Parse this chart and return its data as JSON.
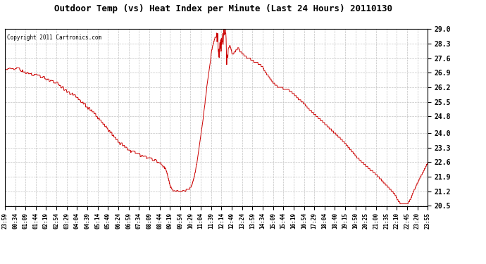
{
  "title": "Outdoor Temp (vs) Heat Index per Minute (Last 24 Hours) 20110130",
  "copyright": "Copyright 2011 Cartronics.com",
  "line_color": "#cc0000",
  "background_color": "#ffffff",
  "plot_bg_color": "#ffffff",
  "grid_color": "#bbbbbb",
  "yticks": [
    20.5,
    21.2,
    21.9,
    22.6,
    23.3,
    24.0,
    24.8,
    25.5,
    26.2,
    26.9,
    27.6,
    28.3,
    29.0
  ],
  "ylim": [
    20.5,
    29.0
  ],
  "x_labels": [
    "23:59",
    "00:34",
    "01:09",
    "01:44",
    "02:19",
    "02:54",
    "03:29",
    "04:04",
    "04:39",
    "05:14",
    "05:49",
    "06:24",
    "06:59",
    "07:34",
    "08:09",
    "08:44",
    "09:19",
    "09:54",
    "10:29",
    "11:04",
    "11:39",
    "12:14",
    "12:49",
    "13:24",
    "13:59",
    "14:34",
    "15:09",
    "15:44",
    "16:19",
    "16:54",
    "17:29",
    "18:04",
    "18:40",
    "19:15",
    "19:50",
    "20:25",
    "21:00",
    "21:35",
    "22:10",
    "22:45",
    "23:20",
    "23:55"
  ],
  "segments": [
    {
      "t": 0,
      "y": 27.1
    },
    {
      "t": 20,
      "y": 27.15
    },
    {
      "t": 50,
      "y": 27.05
    },
    {
      "t": 60,
      "y": 26.95
    },
    {
      "t": 90,
      "y": 26.85
    },
    {
      "t": 120,
      "y": 26.75
    },
    {
      "t": 150,
      "y": 26.55
    },
    {
      "t": 180,
      "y": 26.35
    },
    {
      "t": 210,
      "y": 26.05
    },
    {
      "t": 240,
      "y": 25.75
    },
    {
      "t": 270,
      "y": 25.4
    },
    {
      "t": 300,
      "y": 25.0
    },
    {
      "t": 330,
      "y": 24.5
    },
    {
      "t": 360,
      "y": 24.0
    },
    {
      "t": 390,
      "y": 23.55
    },
    {
      "t": 420,
      "y": 23.2
    },
    {
      "t": 450,
      "y": 23.0
    },
    {
      "t": 480,
      "y": 22.85
    },
    {
      "t": 510,
      "y": 22.7
    },
    {
      "t": 530,
      "y": 22.55
    },
    {
      "t": 545,
      "y": 22.3
    },
    {
      "t": 555,
      "y": 21.8
    },
    {
      "t": 560,
      "y": 21.55
    },
    {
      "t": 565,
      "y": 21.35
    },
    {
      "t": 570,
      "y": 21.25
    },
    {
      "t": 575,
      "y": 21.25
    },
    {
      "t": 585,
      "y": 21.25
    },
    {
      "t": 600,
      "y": 21.25
    },
    {
      "t": 615,
      "y": 21.25
    },
    {
      "t": 625,
      "y": 21.28
    },
    {
      "t": 635,
      "y": 21.5
    },
    {
      "t": 645,
      "y": 22.0
    },
    {
      "t": 655,
      "y": 22.8
    },
    {
      "t": 665,
      "y": 23.8
    },
    {
      "t": 675,
      "y": 24.9
    },
    {
      "t": 685,
      "y": 26.1
    },
    {
      "t": 695,
      "y": 27.1
    },
    {
      "t": 700,
      "y": 27.7
    },
    {
      "t": 703,
      "y": 28.0
    },
    {
      "t": 706,
      "y": 28.2
    },
    {
      "t": 709,
      "y": 28.35
    },
    {
      "t": 712,
      "y": 28.5
    },
    {
      "t": 715,
      "y": 28.6
    },
    {
      "t": 718,
      "y": 28.65
    },
    {
      "t": 721,
      "y": 28.55
    },
    {
      "t": 724,
      "y": 28.3
    },
    {
      "t": 727,
      "y": 28.1
    },
    {
      "t": 730,
      "y": 28.2
    },
    {
      "t": 733,
      "y": 28.35
    },
    {
      "t": 736,
      "y": 28.5
    },
    {
      "t": 739,
      "y": 28.6
    },
    {
      "t": 742,
      "y": 28.55
    },
    {
      "t": 745,
      "y": 29.0
    },
    {
      "t": 748,
      "y": 28.8
    },
    {
      "t": 751,
      "y": 28.3
    },
    {
      "t": 754,
      "y": 27.6
    },
    {
      "t": 757,
      "y": 27.9
    },
    {
      "t": 760,
      "y": 28.1
    },
    {
      "t": 763,
      "y": 28.2
    },
    {
      "t": 766,
      "y": 28.15
    },
    {
      "t": 769,
      "y": 28.0
    },
    {
      "t": 772,
      "y": 27.8
    },
    {
      "t": 775,
      "y": 27.8
    },
    {
      "t": 778,
      "y": 27.85
    },
    {
      "t": 781,
      "y": 27.9
    },
    {
      "t": 784,
      "y": 27.95
    },
    {
      "t": 787,
      "y": 28.0
    },
    {
      "t": 790,
      "y": 28.05
    },
    {
      "t": 793,
      "y": 28.1
    },
    {
      "t": 796,
      "y": 28.0
    },
    {
      "t": 799,
      "y": 27.9
    },
    {
      "t": 805,
      "y": 27.85
    },
    {
      "t": 815,
      "y": 27.7
    },
    {
      "t": 825,
      "y": 27.6
    },
    {
      "t": 835,
      "y": 27.55
    },
    {
      "t": 840,
      "y": 27.5
    },
    {
      "t": 845,
      "y": 27.45
    },
    {
      "t": 855,
      "y": 27.4
    },
    {
      "t": 865,
      "y": 27.3
    },
    {
      "t": 875,
      "y": 27.2
    },
    {
      "t": 885,
      "y": 26.9
    },
    {
      "t": 895,
      "y": 26.75
    },
    {
      "t": 900,
      "y": 26.65
    },
    {
      "t": 905,
      "y": 26.55
    },
    {
      "t": 910,
      "y": 26.45
    },
    {
      "t": 920,
      "y": 26.3
    },
    {
      "t": 930,
      "y": 26.2
    },
    {
      "t": 945,
      "y": 26.15
    },
    {
      "t": 960,
      "y": 26.1
    },
    {
      "t": 970,
      "y": 26.0
    },
    {
      "t": 980,
      "y": 25.9
    },
    {
      "t": 990,
      "y": 25.75
    },
    {
      "t": 1000,
      "y": 25.6
    },
    {
      "t": 1010,
      "y": 25.5
    },
    {
      "t": 1020,
      "y": 25.35
    },
    {
      "t": 1030,
      "y": 25.2
    },
    {
      "t": 1045,
      "y": 25.0
    },
    {
      "t": 1060,
      "y": 24.8
    },
    {
      "t": 1075,
      "y": 24.6
    },
    {
      "t": 1090,
      "y": 24.4
    },
    {
      "t": 1105,
      "y": 24.2
    },
    {
      "t": 1120,
      "y": 24.0
    },
    {
      "t": 1135,
      "y": 23.8
    },
    {
      "t": 1150,
      "y": 23.6
    },
    {
      "t": 1165,
      "y": 23.35
    },
    {
      "t": 1180,
      "y": 23.1
    },
    {
      "t": 1195,
      "y": 22.85
    },
    {
      "t": 1210,
      "y": 22.65
    },
    {
      "t": 1225,
      "y": 22.45
    },
    {
      "t": 1240,
      "y": 22.25
    },
    {
      "t": 1255,
      "y": 22.1
    },
    {
      "t": 1265,
      "y": 21.95
    },
    {
      "t": 1275,
      "y": 21.8
    },
    {
      "t": 1285,
      "y": 21.65
    },
    {
      "t": 1295,
      "y": 21.5
    },
    {
      "t": 1305,
      "y": 21.35
    },
    {
      "t": 1315,
      "y": 21.2
    },
    {
      "t": 1325,
      "y": 21.05
    },
    {
      "t": 1332,
      "y": 20.85
    },
    {
      "t": 1338,
      "y": 20.7
    },
    {
      "t": 1342,
      "y": 20.65
    },
    {
      "t": 1346,
      "y": 20.6
    },
    {
      "t": 1350,
      "y": 20.6
    },
    {
      "t": 1355,
      "y": 20.6
    },
    {
      "t": 1360,
      "y": 20.6
    },
    {
      "t": 1365,
      "y": 20.6
    },
    {
      "t": 1370,
      "y": 20.65
    },
    {
      "t": 1375,
      "y": 20.75
    },
    {
      "t": 1380,
      "y": 20.9
    },
    {
      "t": 1385,
      "y": 21.1
    },
    {
      "t": 1390,
      "y": 21.25
    },
    {
      "t": 1395,
      "y": 21.4
    },
    {
      "t": 1400,
      "y": 21.55
    },
    {
      "t": 1405,
      "y": 21.7
    },
    {
      "t": 1410,
      "y": 21.85
    },
    {
      "t": 1415,
      "y": 22.0
    },
    {
      "t": 1420,
      "y": 22.1
    },
    {
      "t": 1425,
      "y": 22.25
    },
    {
      "t": 1430,
      "y": 22.4
    },
    {
      "t": 1436,
      "y": 22.55
    }
  ]
}
